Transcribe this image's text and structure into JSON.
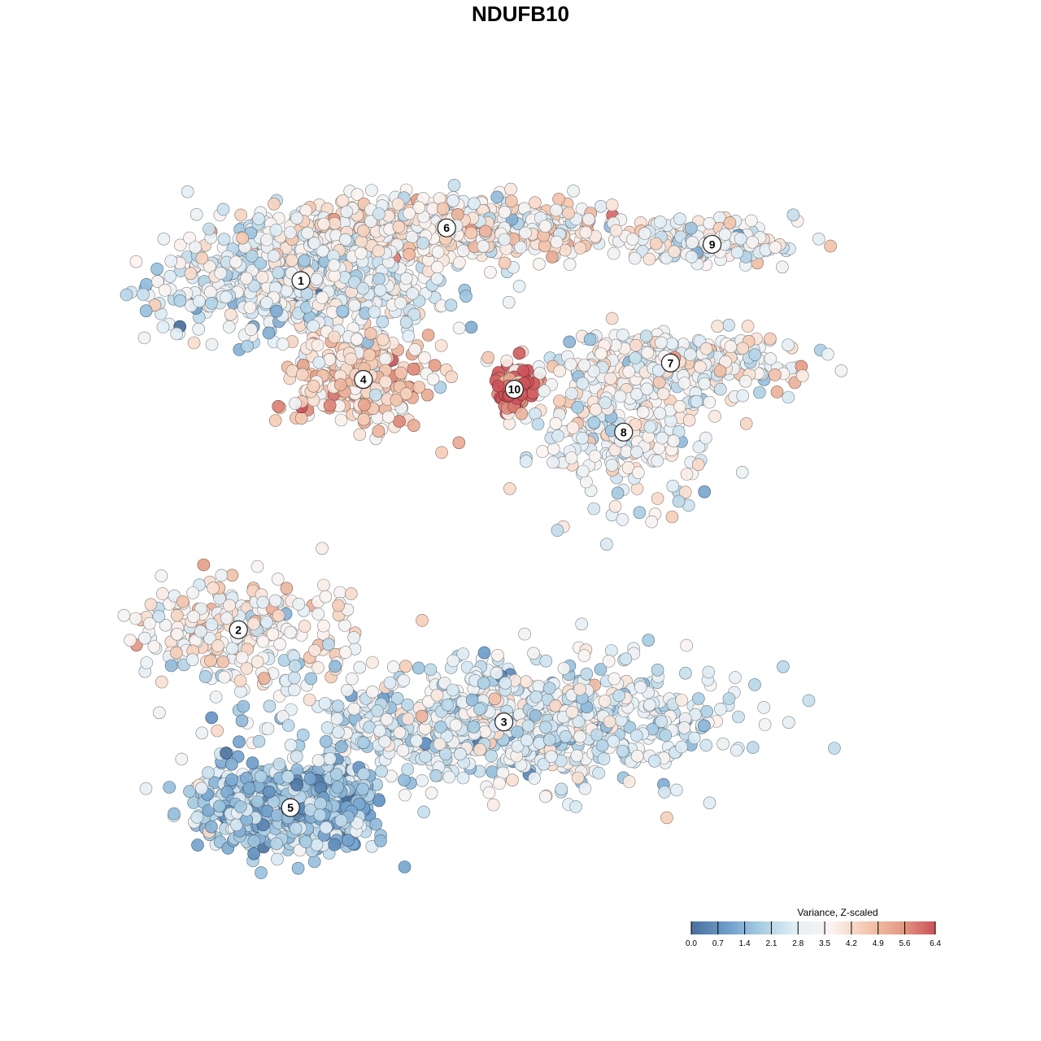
{
  "chart_data": {
    "type": "scatter",
    "title": "NDUFB10",
    "xlabel": "",
    "ylabel": "",
    "color_scale": {
      "title": "Variance, Z-scaled",
      "min": 0.0,
      "max": 6.4,
      "ticks": [
        "0.0",
        "0.7",
        "1.4",
        "2.1",
        "2.8",
        "3.5",
        "4.2",
        "4.9",
        "5.6",
        "6.4"
      ],
      "colors": [
        "#4a6f9c",
        "#6d9ccb",
        "#a8cde3",
        "#e3eff6",
        "#fbf4f1",
        "#f4c9b1",
        "#e49c86",
        "#cc5159"
      ]
    },
    "clusters": [
      {
        "label": "1",
        "x": 1.0,
        "y": 6.6,
        "mean_value": 2.9,
        "spread": [
          3.2,
          2.0
        ],
        "n": 700
      },
      {
        "label": "6",
        "x": 3.8,
        "y": 8.2,
        "mean_value": 3.7,
        "spread": [
          3.6,
          1.0
        ],
        "n": 650
      },
      {
        "label": "4",
        "x": 2.2,
        "y": 3.6,
        "mean_value": 4.3,
        "spread": [
          1.4,
          1.6
        ],
        "n": 300
      },
      {
        "label": "10",
        "x": 5.1,
        "y": 3.3,
        "mean_value": 6.1,
        "spread": [
          0.5,
          0.8
        ],
        "n": 80
      },
      {
        "label": "9",
        "x": 8.9,
        "y": 7.7,
        "mean_value": 3.2,
        "spread": [
          1.9,
          0.7
        ],
        "n": 180
      },
      {
        "label": "7",
        "x": 8.1,
        "y": 4.1,
        "mean_value": 3.3,
        "spread": [
          2.8,
          1.0
        ],
        "n": 280
      },
      {
        "label": "8",
        "x": 7.2,
        "y": 2.0,
        "mean_value": 3.2,
        "spread": [
          2.0,
          2.4
        ],
        "n": 240
      },
      {
        "label": "2",
        "x": -0.2,
        "y": -4.0,
        "mean_value": 3.5,
        "spread": [
          2.4,
          1.8
        ],
        "n": 260
      },
      {
        "label": "3",
        "x": 4.9,
        "y": -6.8,
        "mean_value": 2.8,
        "spread": [
          4.6,
          2.0
        ],
        "n": 900
      },
      {
        "label": "5",
        "x": 0.8,
        "y": -9.4,
        "mean_value": 1.7,
        "spread": [
          1.8,
          1.4
        ],
        "n": 800
      }
    ]
  }
}
